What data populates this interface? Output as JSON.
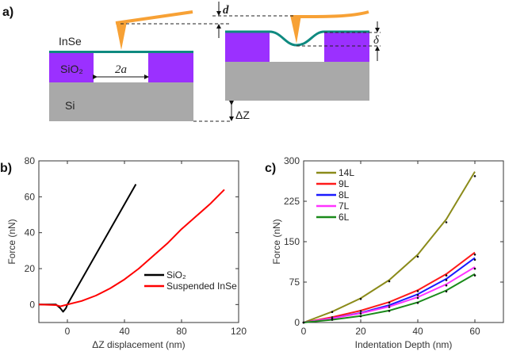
{
  "panel_a": {
    "label": "a)",
    "layer_top": "InSe",
    "layer_mid": "SiO₂",
    "layer_bottom": "Si",
    "hole_width": "2a",
    "deflection": "d",
    "indentation": "δ",
    "displacement": "ΔZ",
    "colors": {
      "insE": "#0f8a80",
      "sio2": "#9b30ff",
      "si": "#a9a9a9",
      "tip": "#f7a135"
    }
  },
  "chart_data": [
    {
      "panel": "b)",
      "type": "line",
      "xlabel": "ΔZ displacement (nm)",
      "ylabel": "Force (nN)",
      "xlim": [
        -20,
        120
      ],
      "ylim": [
        -10,
        80
      ],
      "xticks": [
        0,
        40,
        80,
        120
      ],
      "yticks": [
        0,
        20,
        40,
        60,
        80
      ],
      "grid": false,
      "legend": "bottom-right",
      "series": [
        {
          "name": "SiO₂",
          "color": "#000000",
          "x": [
            -20,
            -8,
            -5,
            -3,
            -1,
            0,
            48
          ],
          "y": [
            0,
            0,
            -2,
            -4,
            -2,
            0,
            67
          ]
        },
        {
          "name": "Suspended InSe",
          "color": "#ff0000",
          "x": [
            -20,
            -8,
            -5,
            0,
            10,
            20,
            30,
            40,
            50,
            60,
            70,
            80,
            90,
            100,
            110
          ],
          "y": [
            0,
            -0.3,
            -1,
            0,
            2,
            5,
            9,
            14,
            20,
            27,
            34,
            42,
            49,
            56,
            64
          ]
        }
      ]
    },
    {
      "panel": "c)",
      "type": "line",
      "xlabel": "Indentation Depth (nm)",
      "ylabel": "Force (nN)",
      "xlim": [
        0,
        70
      ],
      "ylim": [
        0,
        300
      ],
      "xticks": [
        0,
        20,
        40,
        60
      ],
      "yticks": [
        0,
        75,
        150,
        225,
        300
      ],
      "grid": false,
      "legend": "top-left",
      "x": [
        0,
        10,
        20,
        30,
        40,
        50,
        60
      ],
      "series": [
        {
          "name": "14L",
          "color": "#8b8b1a",
          "values": [
            0,
            20.2,
            45,
            78.8,
            126,
            191.8,
            280
          ]
        },
        {
          "name": "9L",
          "color": "#ff1a1a",
          "values": [
            0,
            10,
            22,
            38,
            60,
            90,
            130
          ]
        },
        {
          "name": "8L",
          "color": "#1a1aff",
          "values": [
            0,
            8,
            18,
            32.2,
            52.5,
            81.1,
            120
          ]
        },
        {
          "name": "7L",
          "color": "#ff33ff",
          "values": [
            0,
            7.7,
            17,
            29.6,
            47,
            71,
            103
          ]
        },
        {
          "name": "6L",
          "color": "#1a8a1a",
          "values": [
            0,
            5.2,
            12,
            22.2,
            37.5,
            59.5,
            90
          ]
        }
      ]
    }
  ]
}
